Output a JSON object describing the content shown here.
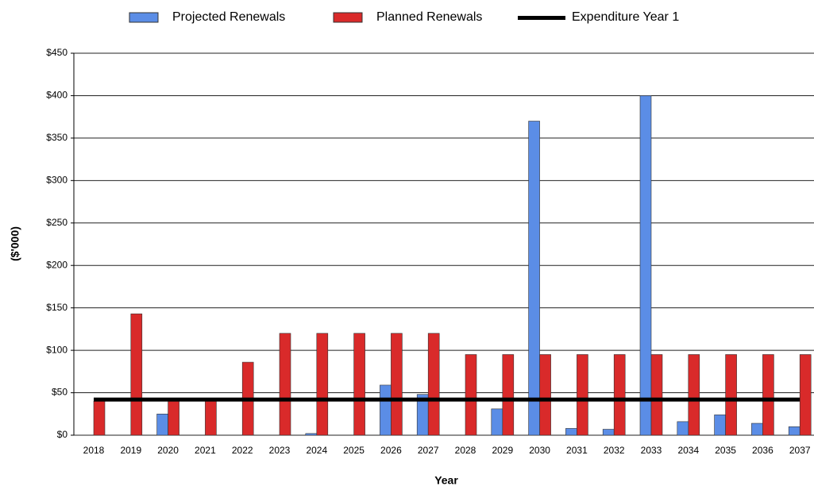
{
  "chart_data": {
    "type": "bar",
    "x_label": "Year",
    "y_label": "($'000)",
    "categories": [
      "2018",
      "2019",
      "2020",
      "2021",
      "2022",
      "2023",
      "2024",
      "2025",
      "2026",
      "2027",
      "2028",
      "2029",
      "2030",
      "2031",
      "2032",
      "2033",
      "2034",
      "2035",
      "2036",
      "2037"
    ],
    "series": [
      {
        "name": "Projected Renewals",
        "color": "#5b8de6",
        "values": [
          0,
          0,
          25,
          0,
          0,
          0,
          2,
          0,
          59,
          48,
          0,
          31,
          370,
          8,
          7,
          400,
          16,
          24,
          14,
          10
        ]
      },
      {
        "name": "Planned Renewals",
        "color": "#d92a2a",
        "values": [
          40,
          143,
          40,
          40,
          86,
          120,
          120,
          120,
          120,
          120,
          95,
          95,
          95,
          95,
          95,
          95,
          95,
          95,
          95,
          95
        ]
      },
      {
        "name": "Expenditure Year 1",
        "color": "#000000",
        "kind": "line",
        "values": [
          42,
          42,
          42,
          42,
          42,
          42,
          42,
          42,
          42,
          42,
          42,
          42,
          42,
          42,
          42,
          42,
          42,
          42,
          42,
          42
        ]
      }
    ],
    "ylim": [
      0,
      450
    ],
    "yticks": [
      {
        "value": 0,
        "label": "$0"
      },
      {
        "value": 50,
        "label": "$50"
      },
      {
        "value": 100,
        "label": "$100"
      },
      {
        "value": 150,
        "label": "$150"
      },
      {
        "value": 200,
        "label": "$200"
      },
      {
        "value": 250,
        "label": "$250"
      },
      {
        "value": 300,
        "label": "$300"
      },
      {
        "value": 350,
        "label": "$350"
      },
      {
        "value": 400,
        "label": "$400"
      },
      {
        "value": 450,
        "label": "$450"
      }
    ],
    "grid": true,
    "legend": "top"
  }
}
